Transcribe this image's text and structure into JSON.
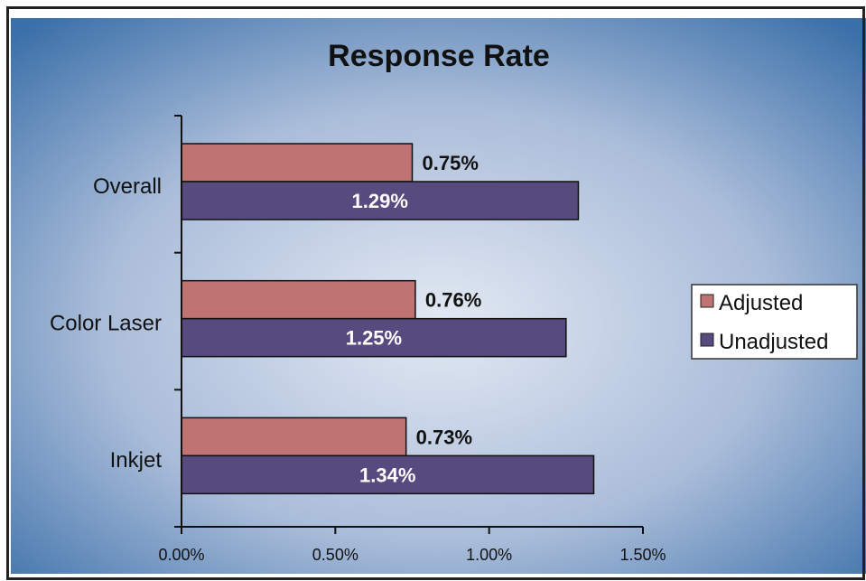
{
  "chart_data": {
    "type": "bar",
    "orientation": "horizontal",
    "title": "Response Rate",
    "categories": [
      "Overall",
      "Color Laser",
      "Inkjet"
    ],
    "series": [
      {
        "name": "Adjusted",
        "values": [
          0.75,
          0.76,
          0.73
        ],
        "labels": [
          "0.75%",
          "0.76%",
          "0.73%"
        ],
        "color": "#c07373"
      },
      {
        "name": "Unadjusted",
        "values": [
          1.29,
          1.25,
          1.34
        ],
        "labels": [
          "1.29%",
          "1.25%",
          "1.34%"
        ],
        "color": "#574a7f"
      }
    ],
    "xlim": [
      0,
      1.5
    ],
    "x_ticks": [
      0,
      0.5,
      1.0,
      1.5
    ],
    "x_tick_labels": [
      "0.00%",
      "0.50%",
      "1.00%",
      "1.50%"
    ],
    "xlabel": "",
    "ylabel": "",
    "grid": false,
    "legend_position": "right",
    "background": {
      "edge_color": "#3a6fa8",
      "center_color": "#e3e9f3"
    }
  }
}
